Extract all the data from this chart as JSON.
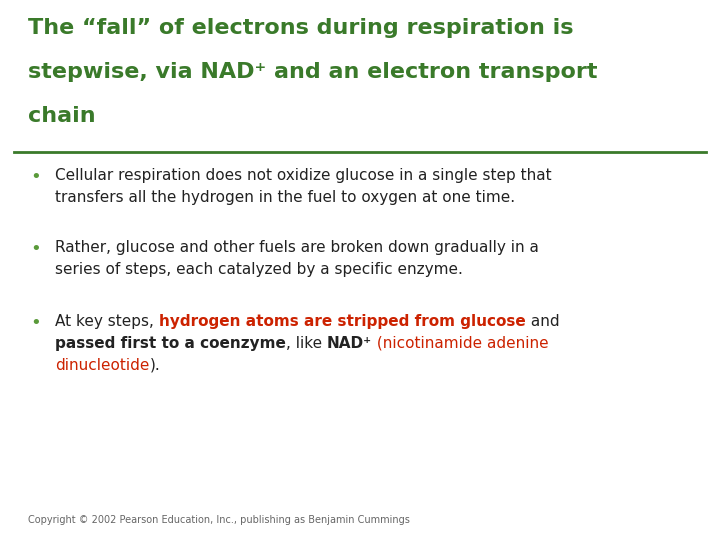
{
  "bg_color": "#ffffff",
  "title_color": "#3a7a2a",
  "title_line1": "The “fall” of electrons during respiration is",
  "title_line2": "stepwise, via NAD⁺ and an electron transport",
  "title_line3": "chain",
  "divider_color": "#3a7a2a",
  "bullet_color": "#5a9a3a",
  "body_color": "#222222",
  "red_color": "#cc2200",
  "bullet1_line1": "Cellular respiration does not oxidize glucose in a single step that",
  "bullet1_line2": "transfers all the hydrogen in the fuel to oxygen at one time.",
  "bullet2_line1": "Rather, glucose and other fuels are broken down gradually in a",
  "bullet2_line2": "series of steps, each catalyzed by a specific enzyme.",
  "copyright": "Copyright © 2002 Pearson Education, Inc., publishing as Benjamin Cummings",
  "title_fontsize": 16,
  "body_fontsize": 11,
  "copyright_fontsize": 7
}
